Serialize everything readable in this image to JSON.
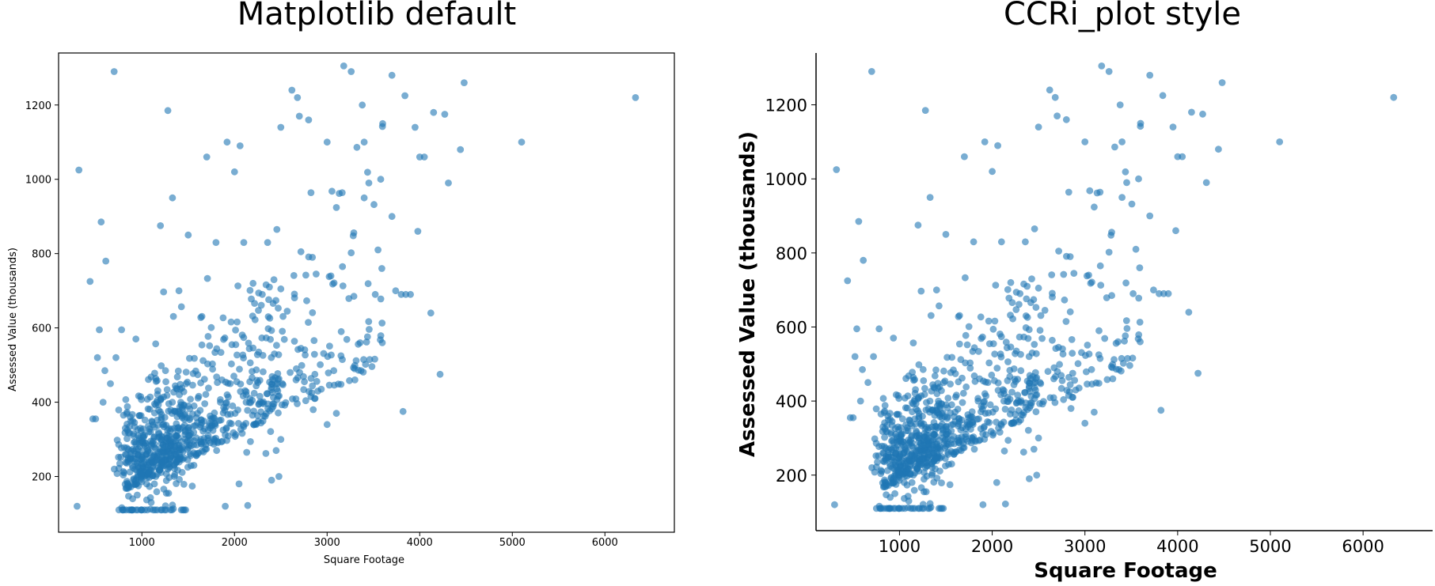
{
  "chart_data": [
    {
      "type": "scatter",
      "title": "Matplotlib default",
      "xlabel": "Square Footage",
      "ylabel": "Assessed Value (thousands)",
      "xlim": [
        100,
        6750
      ],
      "ylim": [
        50,
        1340
      ],
      "xticks": [
        1000,
        2000,
        3000,
        4000,
        5000,
        6000
      ],
      "yticks": [
        200,
        400,
        600,
        800,
        1000,
        1200
      ],
      "grid": false,
      "marker_color": "#1f77b4",
      "marker_alpha": 0.6,
      "spines": "all",
      "x": [],
      "y": []
    },
    {
      "type": "scatter",
      "title": "CCRi_plot style",
      "xlabel": "Square Footage",
      "ylabel": "Assessed Value (thousands)",
      "xlim": [
        100,
        6750
      ],
      "ylim": [
        50,
        1340
      ],
      "xticks": [
        1000,
        2000,
        3000,
        4000,
        5000,
        6000
      ],
      "yticks": [
        200,
        400,
        600,
        800,
        1000,
        1200
      ],
      "grid": false,
      "marker_color": "#1f77b4",
      "marker_alpha": 0.6,
      "spines": "left-bottom",
      "x": [],
      "y": []
    }
  ],
  "_points_x": [
    700,
    320,
    560,
    610,
    440,
    540,
    520,
    600,
    780,
    720,
    660,
    580,
    500,
    470,
    900,
    1200,
    1280,
    1330,
    1700,
    1920,
    2000,
    2060,
    2500,
    2620,
    2680,
    2700,
    2800,
    3000,
    3180,
    3260,
    3380,
    3700,
    3840,
    3950,
    4050,
    4150,
    4270,
    4480,
    4440,
    5100,
    6330,
    4310,
    3550,
    3400,
    3700,
    3800,
    3900,
    3980,
    4000,
    4120,
    3600,
    3400,
    2300,
    2200,
    2100,
    1800,
    1500,
    1400,
    3150,
    3300,
    2900,
    2870,
    2850,
    3100,
    3000,
    1900,
    2400,
    2480,
    2450,
    2500,
    300,
    4220,
    3820,
    3850,
    3740,
    3520,
    1000,
    1100,
    900,
    850,
    950,
    1150,
    1050
  ],
  "_points_y": [
    1290,
    1025,
    885,
    780,
    725,
    595,
    520,
    485,
    595,
    520,
    450,
    400,
    355,
    355,
    350,
    875,
    1185,
    950,
    1060,
    1100,
    1020,
    1090,
    1140,
    1240,
    1220,
    1170,
    1160,
    1100,
    1305,
    1290,
    1200,
    1280,
    1225,
    1140,
    1060,
    1180,
    1175,
    1260,
    1080,
    1100,
    1220,
    990,
    810,
    950,
    900,
    690,
    690,
    860,
    1060,
    640,
    1150,
    1100,
    690,
    720,
    830,
    830,
    850,
    700,
    525,
    460,
    430,
    410,
    380,
    370,
    340,
    120,
    190,
    200,
    270,
    300,
    120,
    475,
    375,
    690,
    700,
    690,
    110,
    130,
    140,
    180,
    150,
    200,
    260
  ]
}
